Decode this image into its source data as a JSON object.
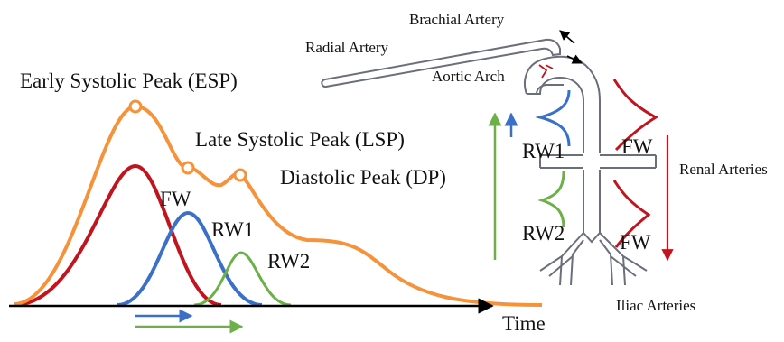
{
  "labels": {
    "esp": "Early Systolic Peak (ESP)",
    "lsp": "Late Systolic Peak (LSP)",
    "dp": "Diastolic Peak (DP)",
    "fw_wave": "FW",
    "rw1_wave": "RW1",
    "rw2_wave": "RW2",
    "time": "Time",
    "brachial": "Brachial Artery",
    "radial": "Radial Artery",
    "aortic": "Aortic Arch",
    "rw1_vessel": "RW1",
    "fw_upper": "FW",
    "renal": "Renal Arteries",
    "rw2_vessel": "RW2",
    "fw_lower": "FW",
    "iliac": "Iliac Arteries"
  },
  "colors": {
    "total": "#f5923a",
    "forward": "#c0141e",
    "rw1": "#3a70c8",
    "rw2": "#6cb048",
    "vessel": "#6b6f7a",
    "axis": "#000000"
  }
}
